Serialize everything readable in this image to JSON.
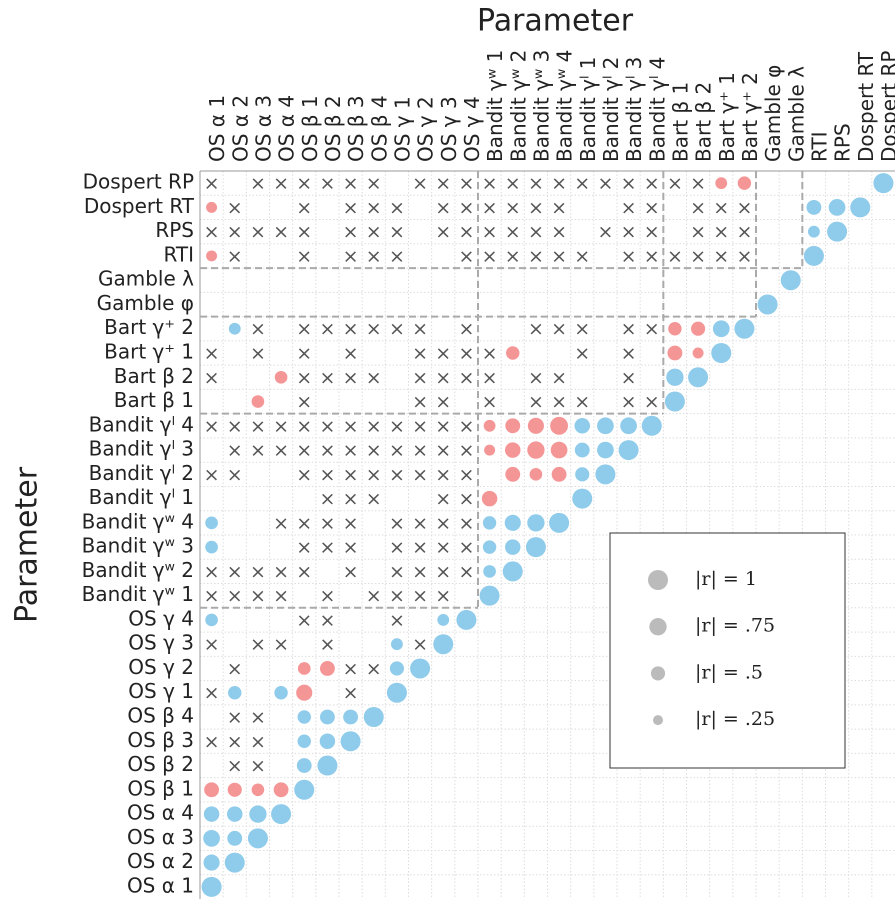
{
  "chart_data": {
    "type": "correlation-matrix",
    "title": "Parameter",
    "ylabel": "Parameter",
    "categories": [
      "OS α 1",
      "OS α 2",
      "OS α 3",
      "OS α 4",
      "OS β 1",
      "OS β 2",
      "OS β 3",
      "OS β 4",
      "OS γ 1",
      "OS γ 2",
      "OS γ 3",
      "OS γ 4",
      "Bandit γʷ 1",
      "Bandit γʷ 2",
      "Bandit γʷ 3",
      "Bandit γʷ 4",
      "Bandit γˡ 1",
      "Bandit γˡ 2",
      "Bandit γˡ 3",
      "Bandit γˡ 4",
      "Bart β 1",
      "Bart β 2",
      "Bart γ⁺ 1",
      "Bart γ⁺ 2",
      "Gamble φ",
      "Gamble λ",
      "RTI",
      "RPS",
      "Dospert RT",
      "Dospert RP"
    ],
    "positive_color": "#8fcbea",
    "negative_color": "#f59696",
    "legend_color": "#bbbbbb",
    "grid": true,
    "matrix": [
      [
        1
      ],
      [
        0.65,
        1
      ],
      [
        0.7,
        0.55,
        1
      ],
      [
        0.6,
        0.6,
        0.75,
        1
      ],
      [
        -0.55,
        -0.5,
        -0.4,
        -0.55,
        1
      ],
      [
        null,
        "×",
        "×",
        null,
        0.55,
        1
      ],
      [
        "×",
        "×",
        "×",
        null,
        0.45,
        0.6,
        1
      ],
      [
        null,
        "×",
        "×",
        null,
        0.45,
        0.55,
        0.55,
        1
      ],
      [
        "×",
        0.45,
        null,
        0.45,
        -0.65,
        null,
        "×",
        null,
        1
      ],
      [
        null,
        "×",
        null,
        null,
        -0.4,
        -0.55,
        "×",
        "×",
        0.5,
        1
      ],
      [
        "×",
        null,
        "×",
        "×",
        null,
        "×",
        null,
        null,
        0.35,
        "×",
        1
      ],
      [
        0.4,
        null,
        null,
        null,
        "×",
        "×",
        null,
        null,
        "×",
        null,
        0.35,
        1
      ],
      [
        "×",
        "×",
        "×",
        "×",
        null,
        "×",
        null,
        "×",
        "×",
        "×",
        "×",
        null,
        1
      ],
      [
        "×",
        "×",
        "×",
        "×",
        "×",
        null,
        "×",
        null,
        "×",
        "×",
        "×",
        "×",
        0.4,
        1
      ],
      [
        0.4,
        null,
        null,
        null,
        "×",
        "×",
        "×",
        null,
        "×",
        "×",
        "×",
        "×",
        0.45,
        0.6,
        1
      ],
      [
        0.4,
        null,
        null,
        "×",
        "×",
        "×",
        "×",
        null,
        "×",
        "×",
        "×",
        "×",
        0.45,
        0.65,
        0.75,
        1
      ],
      [
        null,
        null,
        null,
        null,
        null,
        "×",
        "×",
        "×",
        null,
        null,
        "×",
        "×",
        -0.6,
        null,
        null,
        null,
        1
      ],
      [
        "×",
        "×",
        null,
        null,
        "×",
        "×",
        "×",
        "×",
        "×",
        "×",
        "×",
        "×",
        null,
        -0.55,
        -0.4,
        -0.55,
        0.5,
        1
      ],
      [
        null,
        "×",
        "×",
        "×",
        "×",
        "×",
        "×",
        "×",
        "×",
        "×",
        "×",
        "×",
        -0.3,
        -0.6,
        -0.75,
        -0.7,
        0.55,
        0.7,
        1
      ],
      [
        "×",
        "×",
        "×",
        "×",
        "×",
        "×",
        "×",
        "×",
        "×",
        "×",
        "×",
        "×",
        -0.35,
        -0.55,
        -0.65,
        -0.8,
        0.6,
        0.7,
        0.7,
        1
      ],
      [
        null,
        null,
        -0.4,
        null,
        "×",
        null,
        null,
        null,
        null,
        "×",
        "×",
        null,
        "×",
        null,
        "×",
        "×",
        "×",
        null,
        "×",
        "×",
        1
      ],
      [
        "×",
        null,
        null,
        -0.4,
        "×",
        "×",
        "×",
        "×",
        null,
        "×",
        "×",
        "×",
        "×",
        null,
        "×",
        "×",
        null,
        null,
        "×",
        null,
        0.75,
        1
      ],
      [
        "×",
        null,
        "×",
        null,
        "×",
        null,
        "×",
        null,
        null,
        "×",
        "×",
        "×",
        "×",
        -0.45,
        null,
        null,
        "×",
        null,
        "×",
        null,
        -0.55,
        -0.3,
        1
      ],
      [
        null,
        0.35,
        "×",
        null,
        "×",
        "×",
        "×",
        "×",
        "×",
        "×",
        null,
        "×",
        null,
        null,
        "×",
        "×",
        "×",
        null,
        "×",
        "×",
        -0.45,
        -0.5,
        0.7,
        1
      ],
      [
        null,
        null,
        null,
        null,
        null,
        null,
        null,
        null,
        null,
        null,
        null,
        null,
        null,
        null,
        null,
        null,
        null,
        null,
        null,
        null,
        null,
        null,
        null,
        null,
        1
      ],
      [
        null,
        null,
        null,
        null,
        null,
        null,
        null,
        null,
        null,
        null,
        null,
        null,
        null,
        null,
        null,
        null,
        null,
        null,
        null,
        null,
        null,
        null,
        null,
        null,
        null,
        1
      ],
      [
        -0.3,
        "×",
        null,
        null,
        "×",
        null,
        "×",
        "×",
        "×",
        null,
        null,
        "×",
        "×",
        "×",
        "×",
        "×",
        "×",
        null,
        "×",
        "×",
        "×",
        "×",
        "×",
        "×",
        null,
        null,
        1
      ],
      [
        "×",
        "×",
        "×",
        "×",
        "×",
        null,
        "×",
        "×",
        "×",
        null,
        "×",
        "×",
        "×",
        "×",
        "×",
        "×",
        null,
        "×",
        "×",
        "×",
        null,
        "×",
        "×",
        "×",
        null,
        null,
        0.35,
        1
      ],
      [
        -0.3,
        "×",
        null,
        null,
        "×",
        null,
        "×",
        "×",
        "×",
        null,
        "×",
        "×",
        "×",
        "×",
        "×",
        "×",
        null,
        null,
        "×",
        "×",
        null,
        "×",
        "×",
        "×",
        null,
        null,
        0.55,
        0.7,
        1
      ],
      [
        "×",
        null,
        "×",
        "×",
        "×",
        "×",
        "×",
        "×",
        null,
        "×",
        "×",
        "×",
        "×",
        "×",
        "×",
        "×",
        "×",
        "×",
        "×",
        "×",
        "×",
        "×",
        -0.35,
        -0.45,
        null,
        null,
        null,
        null,
        null,
        1
      ]
    ],
    "legend": {
      "values": [
        1,
        0.75,
        0.5,
        0.25
      ],
      "value_labels": [
        "|r| = 1",
        "|r| = .75",
        "|r| = .5",
        "|r| = .25"
      ]
    }
  }
}
